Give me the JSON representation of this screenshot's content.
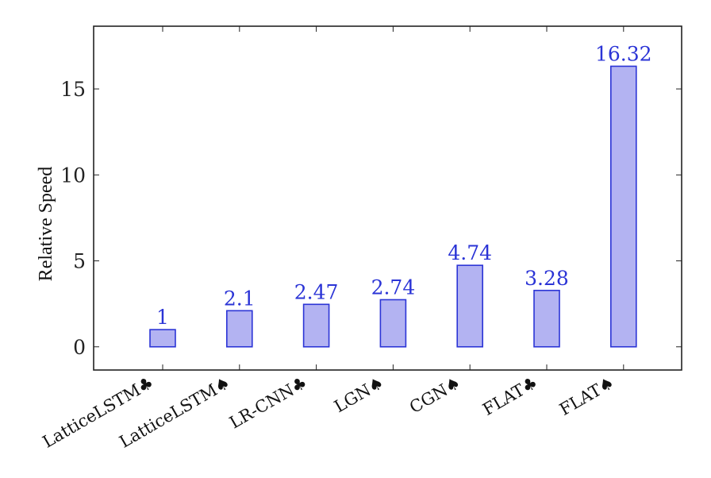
{
  "chart_data": {
    "type": "bar",
    "categories": [
      "LatticeLSTM♣",
      "LatticeLSTM♠",
      "LR-CNN♣",
      "LGN♠",
      "CGN♠",
      "FLAT♣",
      "FLAT♠"
    ],
    "values": [
      1,
      2.1,
      2.47,
      2.74,
      4.74,
      3.28,
      16.32
    ],
    "data_labels": [
      "1",
      "2.1",
      "2.47",
      "2.74",
      "4.74",
      "3.28",
      "16.32"
    ],
    "yticks": [
      0,
      5,
      10,
      15
    ],
    "ytick_labels": [
      "0",
      "5",
      "10",
      "15"
    ],
    "ylim": [
      -1.35,
      18.65
    ],
    "title": "",
    "xlabel": "",
    "ylabel": "Relative Speed",
    "grid": false,
    "legend": "none",
    "colors": {
      "bar_fill": "#b3b3f2",
      "bar_stroke": "#2b34d6",
      "data_label": "#2b34d6",
      "axis": "#222222"
    }
  }
}
